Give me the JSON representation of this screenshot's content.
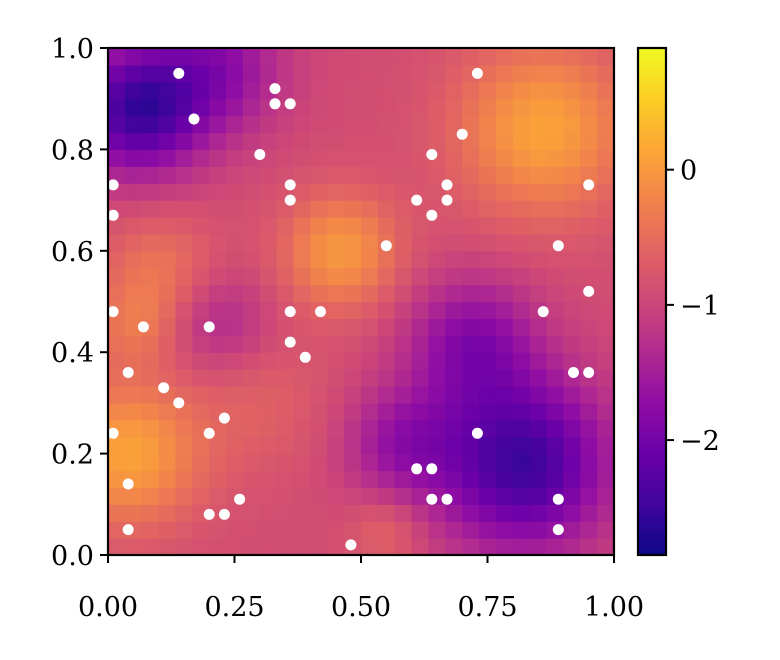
{
  "chart_data": {
    "type": "heatmap",
    "title": "",
    "xlabel": "",
    "ylabel": "",
    "xlim": [
      0,
      1
    ],
    "ylim": [
      0,
      1
    ],
    "grid": false,
    "colormap": "plasma",
    "grid_cells": 30,
    "xticks": [
      "0.00",
      "0.25",
      "0.50",
      "0.75",
      "1.00"
    ],
    "yticks": [
      "0.0",
      "0.2",
      "0.4",
      "0.6",
      "0.8",
      "1.0"
    ],
    "colorbar": {
      "range": [
        -2.85,
        0.9
      ],
      "ticks": [
        {
          "value": 0,
          "label": "0"
        },
        {
          "value": -1,
          "label": "−1"
        },
        {
          "value": -2,
          "label": "−2"
        }
      ]
    },
    "field_bumps": [
      {
        "x": 0.46,
        "y": 0.6,
        "amp": 0.9,
        "sigma": 0.08
      },
      {
        "x": 0.86,
        "y": 0.84,
        "amp": 1.0,
        "sigma": 0.12
      },
      {
        "x": 0.04,
        "y": 0.2,
        "amp": 1.0,
        "sigma": 0.1
      },
      {
        "x": 0.1,
        "y": 0.56,
        "amp": 0.5,
        "sigma": 0.08
      },
      {
        "x": 0.05,
        "y": 0.45,
        "amp": 0.4,
        "sigma": 0.06
      },
      {
        "x": 0.3,
        "y": 0.3,
        "amp": 0.25,
        "sigma": 0.1
      },
      {
        "x": 0.06,
        "y": 0.88,
        "amp": -1.6,
        "sigma": 0.09
      },
      {
        "x": 0.22,
        "y": 0.96,
        "amp": -0.8,
        "sigma": 0.09
      },
      {
        "x": 0.82,
        "y": 0.18,
        "amp": -1.6,
        "sigma": 0.12
      },
      {
        "x": 0.72,
        "y": 0.42,
        "amp": -0.9,
        "sigma": 0.09
      },
      {
        "x": 0.58,
        "y": 0.22,
        "amp": -0.7,
        "sigma": 0.08
      },
      {
        "x": 0.55,
        "y": 0.05,
        "amp": 0.35,
        "sigma": 0.05
      },
      {
        "x": 0.22,
        "y": 0.46,
        "amp": -0.5,
        "sigma": 0.07
      }
    ],
    "field_base": -0.9,
    "points": [
      [
        0.14,
        0.95
      ],
      [
        0.33,
        0.92
      ],
      [
        0.33,
        0.89
      ],
      [
        0.36,
        0.89
      ],
      [
        0.17,
        0.86
      ],
      [
        0.3,
        0.79
      ],
      [
        0.01,
        0.73
      ],
      [
        0.01,
        0.67
      ],
      [
        0.36,
        0.73
      ],
      [
        0.36,
        0.7
      ],
      [
        0.73,
        0.95
      ],
      [
        0.7,
        0.83
      ],
      [
        0.64,
        0.79
      ],
      [
        0.67,
        0.73
      ],
      [
        0.67,
        0.7
      ],
      [
        0.61,
        0.7
      ],
      [
        0.64,
        0.67
      ],
      [
        0.95,
        0.73
      ],
      [
        0.55,
        0.61
      ],
      [
        0.89,
        0.61
      ],
      [
        0.95,
        0.52
      ],
      [
        0.86,
        0.48
      ],
      [
        0.01,
        0.48
      ],
      [
        0.07,
        0.45
      ],
      [
        0.2,
        0.45
      ],
      [
        0.36,
        0.48
      ],
      [
        0.42,
        0.48
      ],
      [
        0.36,
        0.42
      ],
      [
        0.39,
        0.39
      ],
      [
        0.04,
        0.36
      ],
      [
        0.11,
        0.33
      ],
      [
        0.14,
        0.3
      ],
      [
        0.92,
        0.36
      ],
      [
        0.95,
        0.36
      ],
      [
        0.23,
        0.27
      ],
      [
        0.2,
        0.24
      ],
      [
        0.01,
        0.24
      ],
      [
        0.73,
        0.24
      ],
      [
        0.61,
        0.17
      ],
      [
        0.64,
        0.17
      ],
      [
        0.04,
        0.14
      ],
      [
        0.26,
        0.11
      ],
      [
        0.64,
        0.11
      ],
      [
        0.67,
        0.11
      ],
      [
        0.89,
        0.11
      ],
      [
        0.2,
        0.08
      ],
      [
        0.23,
        0.08
      ],
      [
        0.04,
        0.05
      ],
      [
        0.89,
        0.05
      ],
      [
        0.48,
        0.02
      ]
    ]
  }
}
